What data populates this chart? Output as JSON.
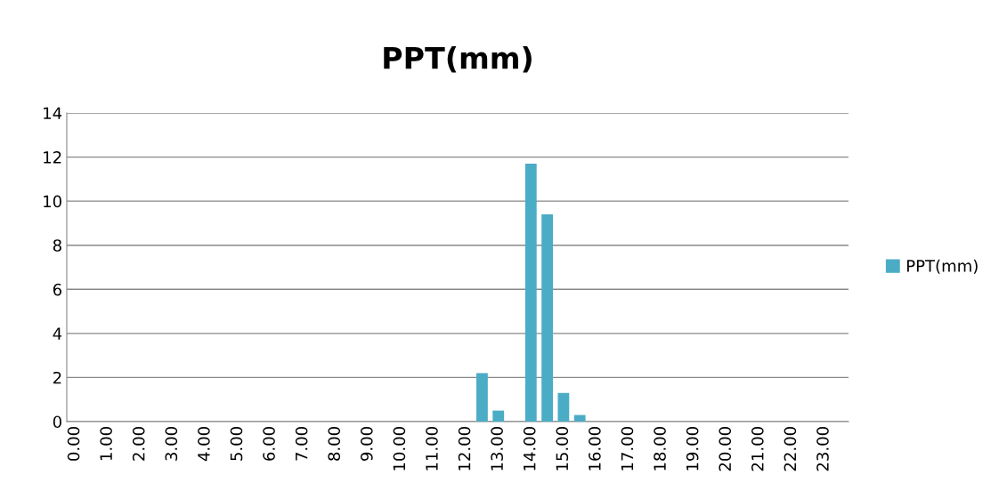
{
  "chart_data": {
    "type": "bar",
    "title": "PPT(mm)",
    "categories": [
      "0.00",
      null,
      "1.00",
      null,
      "2.00",
      null,
      "3.00",
      null,
      "4.00",
      null,
      "5.00",
      null,
      "6.00",
      null,
      "7.00",
      null,
      "8.00",
      null,
      "9.00",
      null,
      "10.00",
      null,
      "11.00",
      null,
      "12.00",
      null,
      "13.00",
      null,
      "14.00",
      null,
      "15.00",
      null,
      "16.00",
      null,
      "17.00",
      null,
      "18.00",
      null,
      "19.00",
      null,
      "20.00",
      null,
      "21.00",
      null,
      "22.00",
      null,
      "23.00",
      null
    ],
    "series": [
      {
        "name": "PPT(mm)",
        "color": "#4bacc6",
        "values": [
          0,
          0,
          0,
          0,
          0,
          0,
          0,
          0,
          0,
          0,
          0,
          0,
          0,
          0,
          0,
          0,
          0,
          0,
          0,
          0,
          0,
          0,
          0,
          0,
          0,
          2.2,
          0.5,
          0,
          11.7,
          9.4,
          1.3,
          0.3,
          0,
          0,
          0,
          0,
          0,
          0,
          0,
          0,
          0,
          0,
          0,
          0,
          0,
          0,
          0,
          0
        ]
      }
    ],
    "ylim": [
      0,
      14
    ],
    "yticks": [
      0,
      2,
      4,
      6,
      8,
      10,
      12,
      14
    ],
    "grid": "y",
    "legend": "right"
  }
}
